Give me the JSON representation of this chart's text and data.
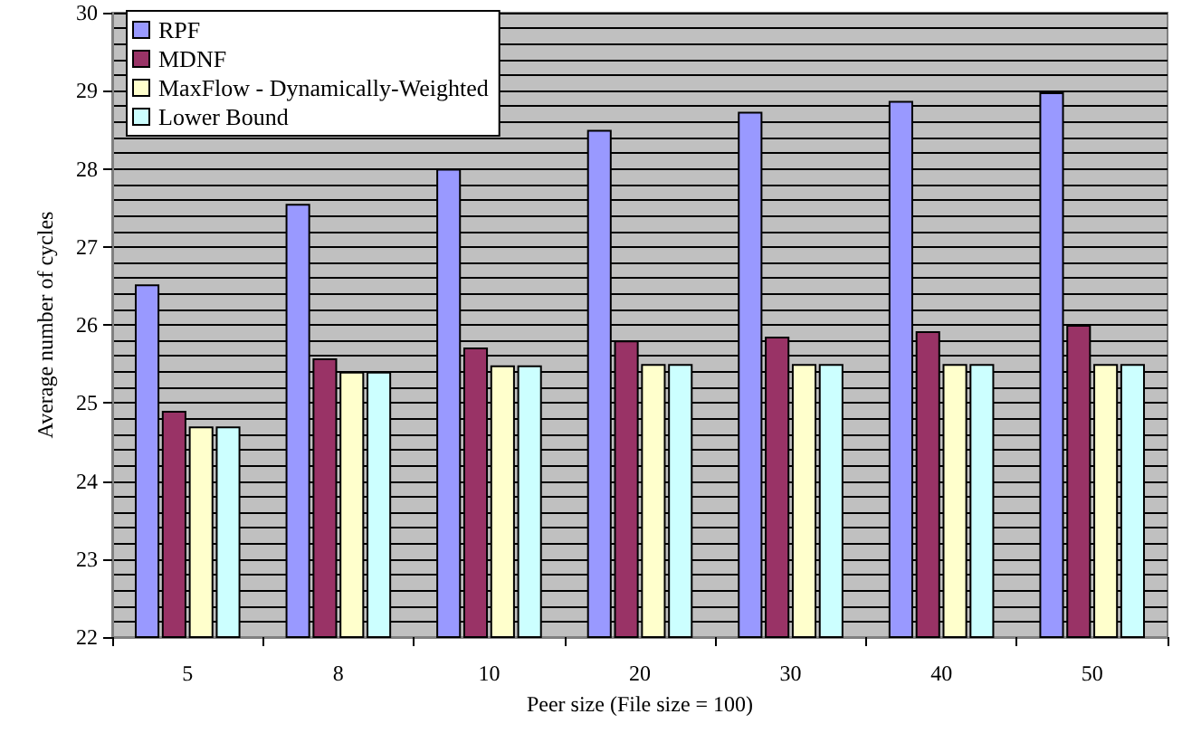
{
  "chart_data": {
    "type": "bar",
    "xlabel": "Peer size (File size = 100)",
    "ylabel": "Average number of cycles",
    "categories": [
      "5",
      "8",
      "10",
      "20",
      "30",
      "40",
      "50"
    ],
    "series": [
      {
        "name": "RPF",
        "color": "#9999ff",
        "values": [
          26.52,
          27.55,
          28.0,
          28.5,
          28.73,
          28.87,
          28.98
        ]
      },
      {
        "name": "MDNF",
        "color": "#993366",
        "values": [
          24.9,
          25.57,
          25.71,
          25.8,
          25.85,
          25.92,
          26.0
        ]
      },
      {
        "name": "MaxFlow - Dynamically-Weighted",
        "color": "#ffffcc",
        "values": [
          24.7,
          25.4,
          25.48,
          25.5,
          25.5,
          25.5,
          25.5
        ]
      },
      {
        "name": "Lower Bound",
        "color": "#ccffff",
        "values": [
          24.7,
          25.4,
          25.48,
          25.5,
          25.5,
          25.5,
          25.5
        ]
      }
    ],
    "ylim": [
      22,
      30
    ],
    "yticks": [
      22,
      23,
      24,
      25,
      26,
      27,
      28,
      29,
      30
    ],
    "grid": "y",
    "legend": "top left"
  }
}
